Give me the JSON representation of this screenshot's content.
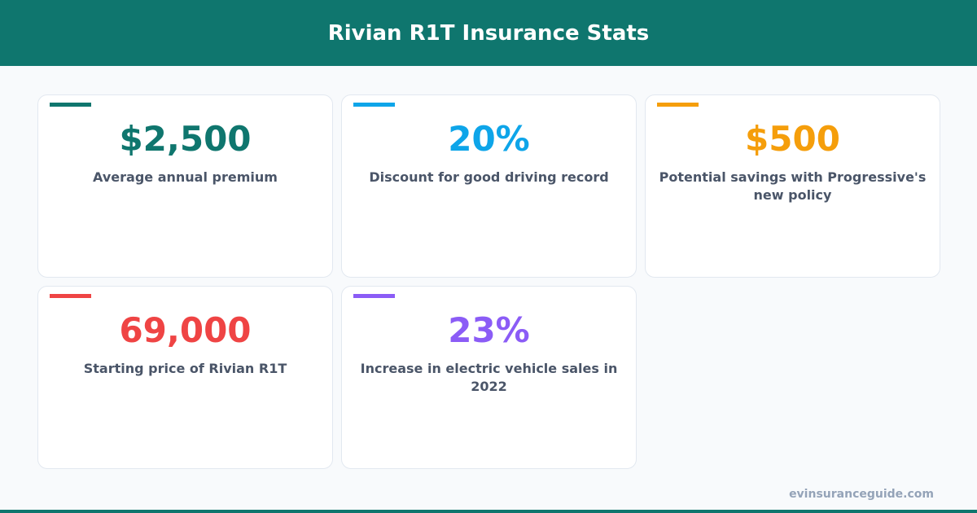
{
  "header": {
    "title": "Rivian R1T Insurance Stats"
  },
  "cards": [
    {
      "value": "$2,500",
      "label": "Average annual premium",
      "color": "#0f766e"
    },
    {
      "value": "20%",
      "label": "Discount for good driving record",
      "color": "#0ea5e9"
    },
    {
      "value": "$500",
      "label": "Potential savings with Progressive's new policy",
      "color": "#f59e0b"
    },
    {
      "value": "69,000",
      "label": "Starting price of Rivian R1T",
      "color": "#ef4444"
    },
    {
      "value": "23%",
      "label": "Increase in electric vehicle sales in 2022",
      "color": "#8b5cf6"
    }
  ],
  "footer": {
    "site": "evinsuranceguide.com"
  }
}
